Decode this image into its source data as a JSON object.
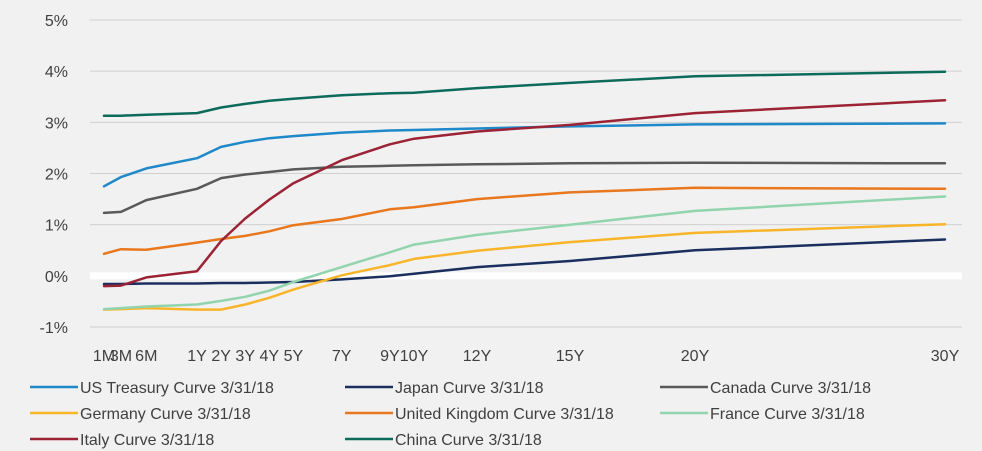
{
  "chart_data": {
    "type": "line",
    "title": "",
    "xlabel": "",
    "ylabel": "",
    "categories": [
      "1M",
      "3M",
      "6M",
      "1Y",
      "2Y",
      "3Y",
      "4Y",
      "5Y",
      "7Y",
      "9Y",
      "10Y",
      "12Y",
      "15Y",
      "20Y",
      "30Y"
    ],
    "x_positions_years": [
      0.083,
      0.25,
      0.5,
      1,
      2,
      3,
      4,
      5,
      7,
      9,
      10,
      12,
      15,
      20,
      30
    ],
    "y_axis": {
      "min": -1,
      "max": 5,
      "step": 1,
      "tick_labels": [
        "-1%",
        "0%",
        "1%",
        "2%",
        "3%",
        "4%",
        "5%"
      ],
      "unit": "%"
    },
    "grid": "horizontal",
    "zero_line": "white",
    "legend_position": "bottom",
    "series": [
      {
        "name": "US Treasury Curve 3/31/18",
        "color": "#1f88c8",
        "values": [
          1.75,
          1.93,
          2.1,
          2.3,
          2.52,
          2.62,
          2.69,
          2.73,
          2.8,
          2.84,
          2.85,
          2.88,
          2.92,
          2.96,
          2.98
        ]
      },
      {
        "name": "Japan Curve 3/31/18",
        "color": "#1b2f5e",
        "values": [
          -0.16,
          -0.16,
          -0.15,
          -0.15,
          -0.14,
          -0.14,
          -0.13,
          -0.12,
          -0.07,
          -0.01,
          0.04,
          0.17,
          0.29,
          0.5,
          0.71
        ]
      },
      {
        "name": "Canada Curve 3/31/18",
        "color": "#595959",
        "values": [
          1.23,
          1.25,
          1.48,
          1.7,
          1.91,
          1.98,
          2.03,
          2.08,
          2.13,
          2.15,
          2.16,
          2.18,
          2.2,
          2.21,
          2.2
        ]
      },
      {
        "name": "Germany Curve 3/31/18",
        "color": "#f9b52a",
        "values": [
          -0.66,
          -0.65,
          -0.63,
          -0.66,
          -0.66,
          -0.56,
          -0.43,
          -0.27,
          0.01,
          0.21,
          0.33,
          0.49,
          0.66,
          0.84,
          1.01
        ]
      },
      {
        "name": "United Kingdom Curve 3/31/18",
        "color": "#e8771e",
        "values": [
          0.43,
          0.52,
          0.51,
          0.65,
          0.72,
          0.78,
          0.87,
          0.99,
          1.11,
          1.3,
          1.34,
          1.5,
          1.63,
          1.72,
          1.7
        ]
      },
      {
        "name": "France Curve 3/31/18",
        "color": "#92d4ae",
        "values": [
          -0.65,
          -0.63,
          -0.6,
          -0.56,
          -0.49,
          -0.41,
          -0.29,
          -0.12,
          0.17,
          0.46,
          0.61,
          0.8,
          1.0,
          1.27,
          1.55
        ]
      },
      {
        "name": "Italy Curve 3/31/18",
        "color": "#9b2335",
        "values": [
          -0.2,
          -0.19,
          -0.03,
          0.09,
          0.68,
          1.12,
          1.49,
          1.81,
          2.26,
          2.57,
          2.68,
          2.82,
          2.95,
          3.18,
          3.43
        ]
      },
      {
        "name": "China Curve 3/31/18",
        "color": "#0d6b5b",
        "values": [
          3.13,
          3.13,
          3.15,
          3.18,
          3.29,
          3.36,
          3.42,
          3.46,
          3.53,
          3.57,
          3.58,
          3.67,
          3.77,
          3.9,
          3.99
        ]
      }
    ]
  }
}
